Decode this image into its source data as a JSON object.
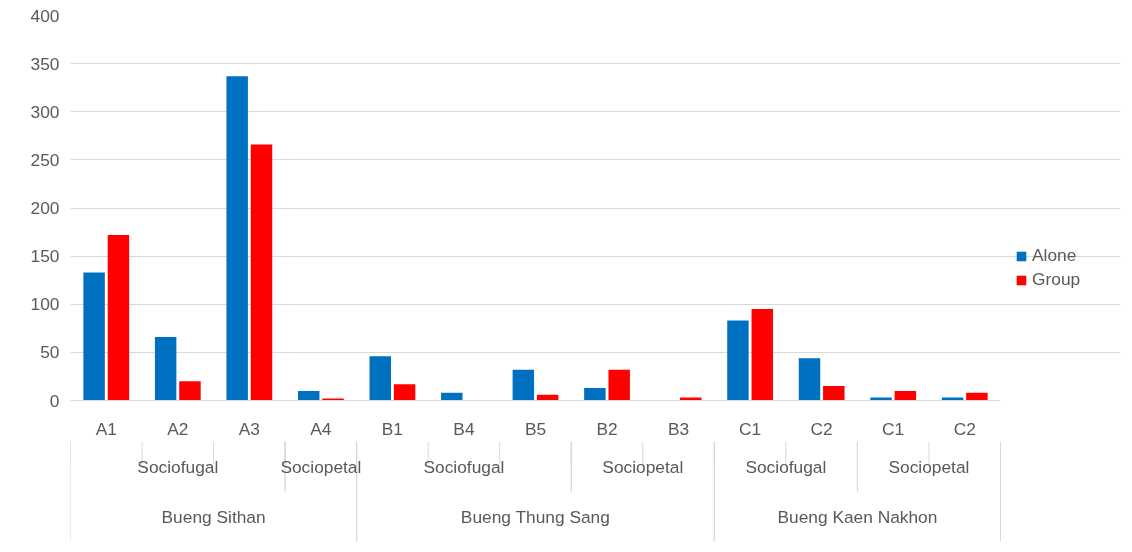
{
  "chart_data": {
    "type": "bar",
    "categories": [
      "A1",
      "A2",
      "A3",
      "A4",
      "B1",
      "B4",
      "B5",
      "B2",
      "B3",
      "C1",
      "C2",
      "C1",
      "C2"
    ],
    "series": [
      {
        "name": "Alone",
        "color": "#0070c0",
        "values": [
          133,
          66,
          337,
          10,
          46,
          8,
          32,
          13,
          0,
          83,
          44,
          3,
          3
        ]
      },
      {
        "name": "Group",
        "color": "#ff0000",
        "values": [
          172,
          20,
          266,
          2,
          17,
          0,
          6,
          32,
          3,
          95,
          15,
          10,
          8
        ]
      }
    ],
    "ylim": [
      0,
      400
    ],
    "yticks": [
      0,
      50,
      100,
      150,
      200,
      250,
      300,
      350,
      400
    ],
    "grid": "y",
    "legend": "right",
    "annotations": [
      "Sociofugal",
      "Sociopetal",
      "Sociofugal",
      "Sociopetal",
      "Sociofugal",
      "Sociopetal",
      "Bueng Sithan",
      "Bueng Thung Sang",
      "Bueng Kaen Nakhon"
    ]
  }
}
